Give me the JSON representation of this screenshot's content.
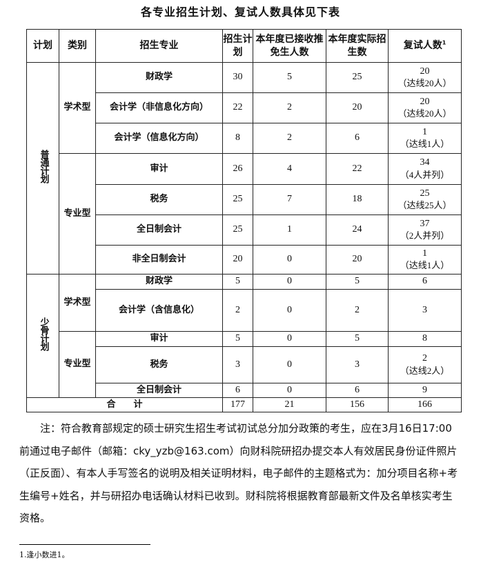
{
  "title": "各专业招生计划、复试人数具体见下表",
  "headers": {
    "plan": "计划",
    "category": "类别",
    "major": "招生专业",
    "quota": "招生计划",
    "exempt": "本年度已接收推免生人数",
    "actual": "本年度实际招生数",
    "retest": "复试人数",
    "retest_sup": "1"
  },
  "groups": {
    "regular": "普通计划",
    "minority": "少骨计划",
    "academic": "学术型",
    "professional": "专业型"
  },
  "rows": [
    {
      "major": "财政学",
      "quota": "30",
      "exempt": "5",
      "actual": "25",
      "retest": "20",
      "retest_note": "（达线20人）"
    },
    {
      "major": "会计学（非信息化方向）",
      "quota": "22",
      "exempt": "2",
      "actual": "20",
      "retest": "20",
      "retest_note": "（达线20人）"
    },
    {
      "major": "会计学（信息化方向）",
      "quota": "8",
      "exempt": "2",
      "actual": "6",
      "retest": "1",
      "retest_note": "（达线1人）"
    },
    {
      "major": "审计",
      "quota": "26",
      "exempt": "4",
      "actual": "22",
      "retest": "34",
      "retest_note": "（4人并列）"
    },
    {
      "major": "税务",
      "quota": "25",
      "exempt": "7",
      "actual": "18",
      "retest": "25",
      "retest_note": "（达线25人）"
    },
    {
      "major": "全日制会计",
      "quota": "25",
      "exempt": "1",
      "actual": "24",
      "retest": "37",
      "retest_note": "（2人并列）"
    },
    {
      "major": "非全日制会计",
      "quota": "20",
      "exempt": "0",
      "actual": "20",
      "retest": "1",
      "retest_note": "（达线1人）"
    },
    {
      "major": "财政学",
      "quota": "5",
      "exempt": "0",
      "actual": "5",
      "retest": "6"
    },
    {
      "major": "会计学（含信息化）",
      "quota": "2",
      "exempt": "0",
      "actual": "2",
      "retest": "3"
    },
    {
      "major": "审计",
      "quota": "5",
      "exempt": "0",
      "actual": "5",
      "retest": "8"
    },
    {
      "major": "税务",
      "quota": "3",
      "exempt": "0",
      "actual": "3",
      "retest": "2",
      "retest_note": "（达线2人）"
    },
    {
      "major": "全日制会计",
      "quota": "6",
      "exempt": "0",
      "actual": "6",
      "retest": "9"
    }
  ],
  "total": {
    "label": "合　　计",
    "quota": "177",
    "exempt": "21",
    "actual": "156",
    "retest": "166"
  },
  "note": "注：符合教育部规定的硕士研究生招生考试初试总分加分政策的考生，应在3月16日17:00前通过电子邮件（邮箱：cky_yzb@163.com）向财科院研招办提交本人有效居民身份证件照片（正反面）、有本人手写签名的说明及相关证明材料，电子邮件的主题格式为：加分项目名称+考生编号+姓名，并与研招办电话确认材料已收到。财科院将根据教育部最新文件及名单核实考生资格。",
  "footnote": "1.逢小数进1。"
}
